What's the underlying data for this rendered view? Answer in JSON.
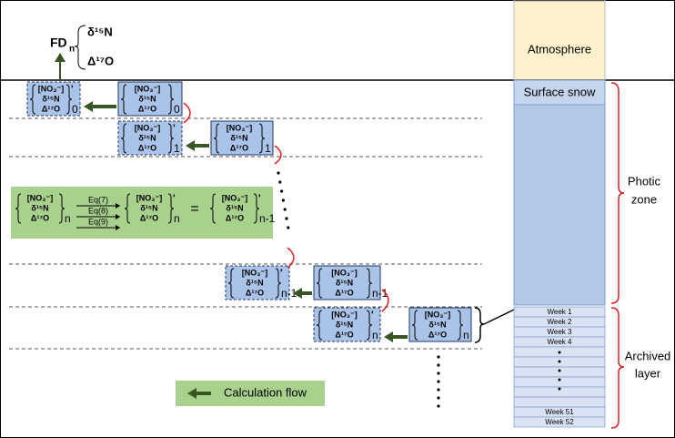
{
  "header": {
    "fd": "FD",
    "fd_sub": "n",
    "lines": [
      "δ¹⁵N",
      "Δ¹⁷O"
    ]
  },
  "atmosphere": "Atmosphere",
  "snowpack": {
    "surface": "Surface snow",
    "weeks": [
      "Week 1",
      "Week 2",
      "Week 3",
      "Week 4",
      "Week 51",
      "Week 52"
    ],
    "photic_zone": [
      "Photic",
      "zone"
    ],
    "archived_layer": [
      "Archived",
      "layer"
    ]
  },
  "box_lines": [
    "[NO₃⁻]",
    "δ¹⁵N",
    "Δ¹⁷O"
  ],
  "prime": "'",
  "boxes": [
    {
      "sub": "0"
    },
    {
      "sub": "1"
    },
    {
      "sub": "n-1"
    },
    {
      "sub": "n"
    }
  ],
  "equation": {
    "eqs": [
      "Eq(7)",
      "Eq(8)",
      "Eq(9)"
    ],
    "equals": "=",
    "subs": [
      "n",
      "n",
      "n-1"
    ]
  },
  "legend": "Calculation flow"
}
